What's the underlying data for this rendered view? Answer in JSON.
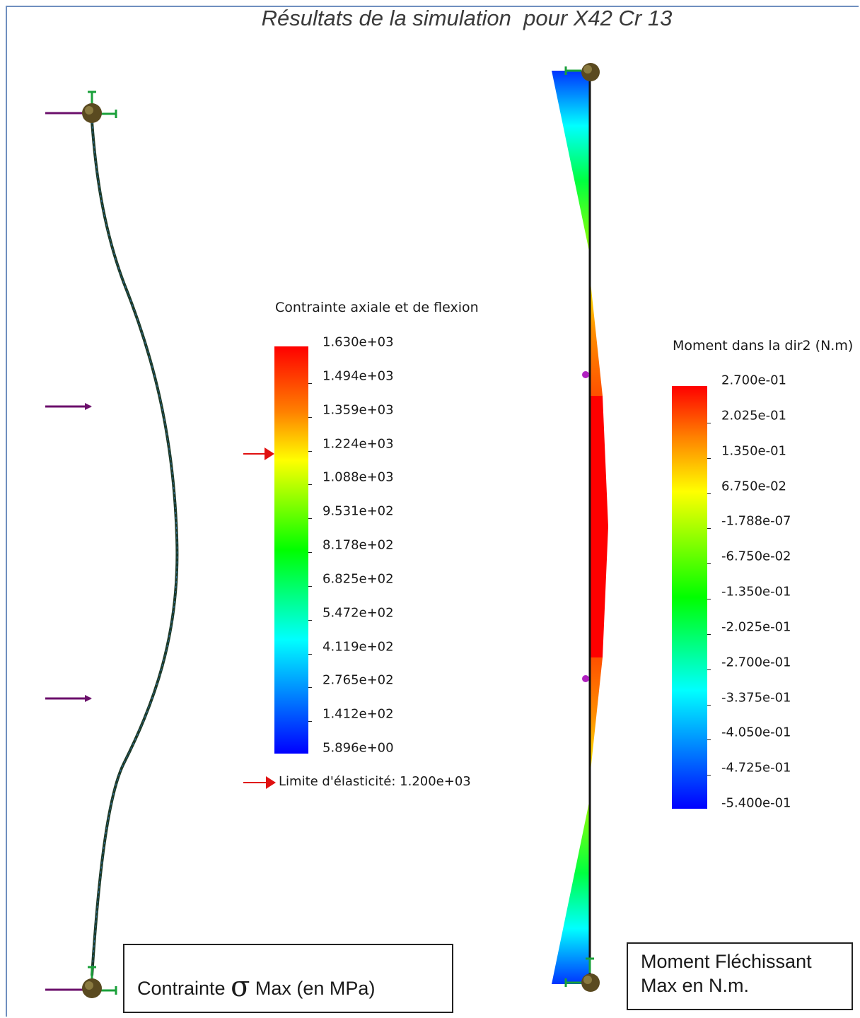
{
  "title": "Résultats de la simulation  pour X42 Cr 13",
  "stress_legend": {
    "title": "Contrainte axiale et de flexion",
    "ticks": [
      "1.630e+03",
      "1.494e+03",
      "1.359e+03",
      "1.224e+03",
      "1.088e+03",
      "9.531e+02",
      "8.178e+02",
      "6.825e+02",
      "5.472e+02",
      "4.119e+02",
      "2.765e+02",
      "1.412e+02",
      "5.896e+00"
    ],
    "yield_label": "Limite d'élasticité: 1.200e+03",
    "yield_value": 1200,
    "min": 5.896,
    "max": 1630,
    "colors": [
      "#ff0000",
      "#ffff00",
      "#00ff00",
      "#00ffff",
      "#0000ff"
    ]
  },
  "moment_legend": {
    "title": "Moment dans la dir2 (N.m)",
    "ticks": [
      "2.700e-01",
      "2.025e-01",
      "1.350e-01",
      "6.750e-02",
      "-1.788e-07",
      "-6.750e-02",
      "-1.350e-01",
      "-2.025e-01",
      "-2.700e-01",
      "-3.375e-01",
      "-4.050e-01",
      "-4.725e-01",
      "-5.400e-01"
    ]
  },
  "stress_caption": {
    "before": "Contrainte ",
    "symbol": "σ",
    "after": " Max (en MPa)"
  },
  "moment_caption": {
    "line1": "Moment Fléchissant",
    "line2": "Max en N.m."
  },
  "colors": {
    "load_arrow": "#6b0f6b",
    "support": "#1aa03a",
    "yield_arrow": "#e01010",
    "beam": "#1e3a28"
  }
}
